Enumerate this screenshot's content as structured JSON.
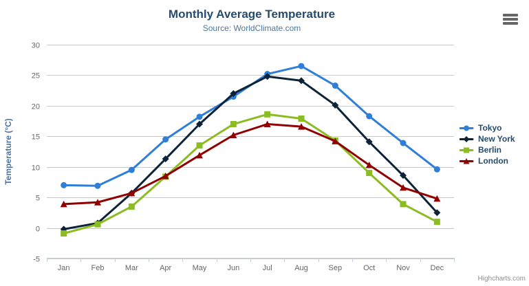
{
  "chart_data": {
    "type": "line",
    "title": "Monthly Average Temperature",
    "subtitle": "Source: WorldClimate.com",
    "ylabel": "Temperature (°C)",
    "categories": [
      "Jan",
      "Feb",
      "Mar",
      "Apr",
      "May",
      "Jun",
      "Jul",
      "Aug",
      "Sep",
      "Oct",
      "Nov",
      "Dec"
    ],
    "ylim": [
      -5,
      30
    ],
    "yticks": [
      -5,
      0,
      5,
      10,
      15,
      20,
      25,
      30
    ],
    "grid": true,
    "legend_position": "right",
    "credits": "Highcharts.com",
    "series": [
      {
        "name": "Tokyo",
        "color": "#2f7ed8",
        "marker": "circle",
        "values": [
          7.0,
          6.9,
          9.5,
          14.5,
          18.2,
          21.5,
          25.2,
          26.5,
          23.3,
          18.3,
          13.9,
          9.6
        ]
      },
      {
        "name": "New York",
        "color": "#0d233a",
        "marker": "diamond",
        "values": [
          -0.2,
          0.8,
          5.7,
          11.3,
          17.0,
          22.0,
          24.8,
          24.1,
          20.1,
          14.1,
          8.6,
          2.5
        ]
      },
      {
        "name": "Berlin",
        "color": "#8bbc21",
        "marker": "square",
        "values": [
          -0.9,
          0.6,
          3.5,
          8.4,
          13.5,
          17.0,
          18.6,
          17.9,
          14.3,
          9.0,
          3.9,
          1.0
        ]
      },
      {
        "name": "London",
        "color": "#910000",
        "marker": "triangle",
        "values": [
          3.9,
          4.2,
          5.7,
          8.5,
          11.9,
          15.2,
          17.0,
          16.6,
          14.2,
          10.3,
          6.6,
          4.8
        ]
      }
    ],
    "style_colors": {
      "title": "#274b6d",
      "subtitle": "#4d759e",
      "axis_title": "#4d759e",
      "axis_labels": "#666666",
      "grid_line": "#c8c8c8",
      "axis_line": "#c0d0e0",
      "legend_text": "#274b6d",
      "credits_text": "#909090",
      "menu_icon": "#666666"
    }
  }
}
